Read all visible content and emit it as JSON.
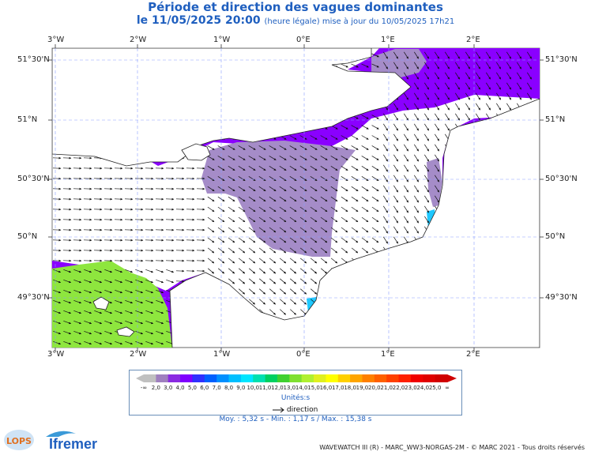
{
  "title": "Période et direction des vagues dominantes",
  "subtitle_main": "le 11/05/2025 20:00",
  "subtitle_small": "(heure légale) mise à jour du 10/05/2025 17h21",
  "lon_labels": [
    "3°W",
    "2°W",
    "1°W",
    "0°E",
    "1°E",
    "2°E"
  ],
  "lat_labels": [
    "51°30'N",
    "51°N",
    "50°30'N",
    "50°N",
    "49°30'N"
  ],
  "legend": {
    "labels": [
      "-∞",
      "2,0",
      "3,0",
      "4,0",
      "5,0",
      "6,0",
      "7,0",
      "8,0",
      "9,0",
      "10,0",
      "11,0",
      "12,0",
      "13,0",
      "14,0",
      "15,0",
      "16,0",
      "17,0",
      "18,0",
      "19,0",
      "20,0",
      "21,0",
      "22,0",
      "23,0",
      "24,0",
      "25,0",
      "∞"
    ],
    "colors": [
      "#c0c0c0",
      "#9f7fbf",
      "#8a2be2",
      "#7f00ff",
      "#3030ff",
      "#0060ff",
      "#0090ff",
      "#00bfff",
      "#00e5ff",
      "#00e0b0",
      "#00d060",
      "#40d030",
      "#80e030",
      "#b0f030",
      "#e0f020",
      "#ffff00",
      "#ffd000",
      "#ffa500",
      "#ff8000",
      "#ff6000",
      "#ff4000",
      "#ff2000",
      "#f00000",
      "#e00000",
      "#d00000"
    ],
    "units": "Unités:s",
    "direction": "direction"
  },
  "stats": "Moy. : 5,32 s  -  Min. : 1,17 s / Max. : 15,38 s",
  "footer": "WAVEWATCH III (R) - MARC_WW3-NORGAS-2M - © MARC 2021 - Tous droits réservés",
  "logos": {
    "lops": "LOPS",
    "ifremer": "Ifremer"
  },
  "colors": {
    "land": "#ffffff",
    "violet": "#8a00ff",
    "grey": "#a58cc8",
    "green": "#8ee63e",
    "cyan": "#1ec8ff",
    "title": "#1f5fbf"
  }
}
